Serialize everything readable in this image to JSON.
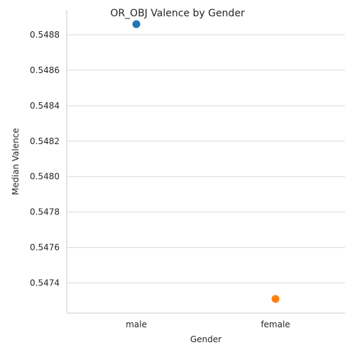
{
  "chart_data": {
    "type": "scatter",
    "title": "OR_OBJ Valence by Gender",
    "xlabel": "Gender",
    "ylabel": "Median Valence",
    "categories": [
      "male",
      "female"
    ],
    "values": [
      0.54886,
      0.54731
    ],
    "point_colors": [
      "#1f77b4",
      "#ff7f0e"
    ],
    "ylim": [
      0.54723,
      0.54894
    ],
    "yticks": [
      0.5474,
      0.5476,
      0.5478,
      0.548,
      0.5482,
      0.5484,
      0.5486,
      0.5488
    ],
    "ytick_labels": [
      "0.5474",
      "0.5476",
      "0.5478",
      "0.5480",
      "0.5482",
      "0.5484",
      "0.5486",
      "0.5488"
    ],
    "grid": "horizontal",
    "legend": "none"
  }
}
